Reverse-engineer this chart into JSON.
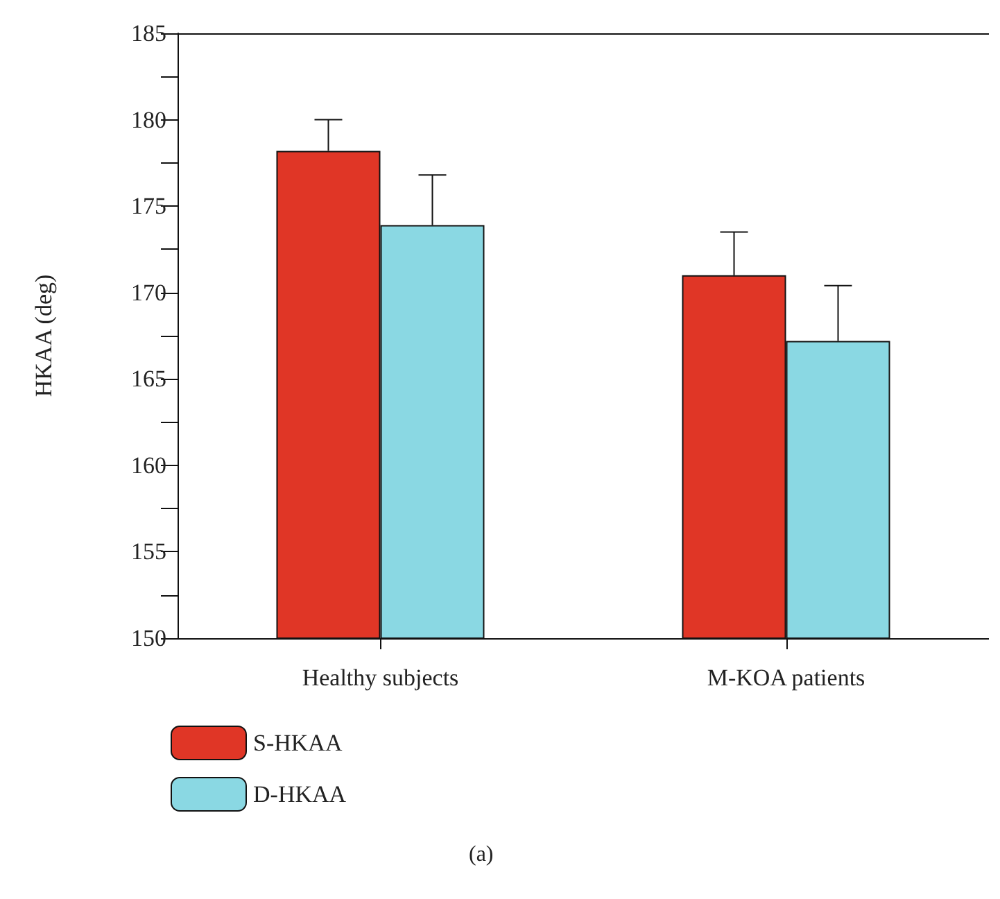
{
  "chart_data": {
    "type": "bar",
    "ylabel": "HKAA (deg)",
    "categories": [
      "Healthy subjects",
      "M-KOA patients"
    ],
    "series": [
      {
        "name": "S-HKAA",
        "color": "#e03626",
        "values": [
          178.2,
          171.0
        ],
        "errors": [
          [
            178.2,
            180.0
          ],
          [
            171.0,
            173.5
          ]
        ]
      },
      {
        "name": "D-HKAA",
        "color": "#8ad8e3",
        "values": [
          173.9,
          167.2
        ],
        "errors": [
          [
            173.9,
            176.8
          ],
          [
            167.2,
            170.4
          ]
        ]
      }
    ],
    "ylim": [
      150,
      185
    ],
    "yticks": [
      150,
      {
        "value": 152.5,
        "label": null
      },
      155,
      {
        "value": 157.5,
        "label": null
      },
      160,
      {
        "value": 162.5,
        "label": null
      },
      165,
      {
        "value": 167.5,
        "label": null
      },
      170,
      {
        "value": 172.5,
        "label": null
      },
      175,
      {
        "value": 177.5,
        "label": null
      },
      180,
      {
        "value": 182.5,
        "label": null
      },
      185
    ],
    "grid": false,
    "legend": "bottom left",
    "annotations": [
      "(a)"
    ]
  }
}
